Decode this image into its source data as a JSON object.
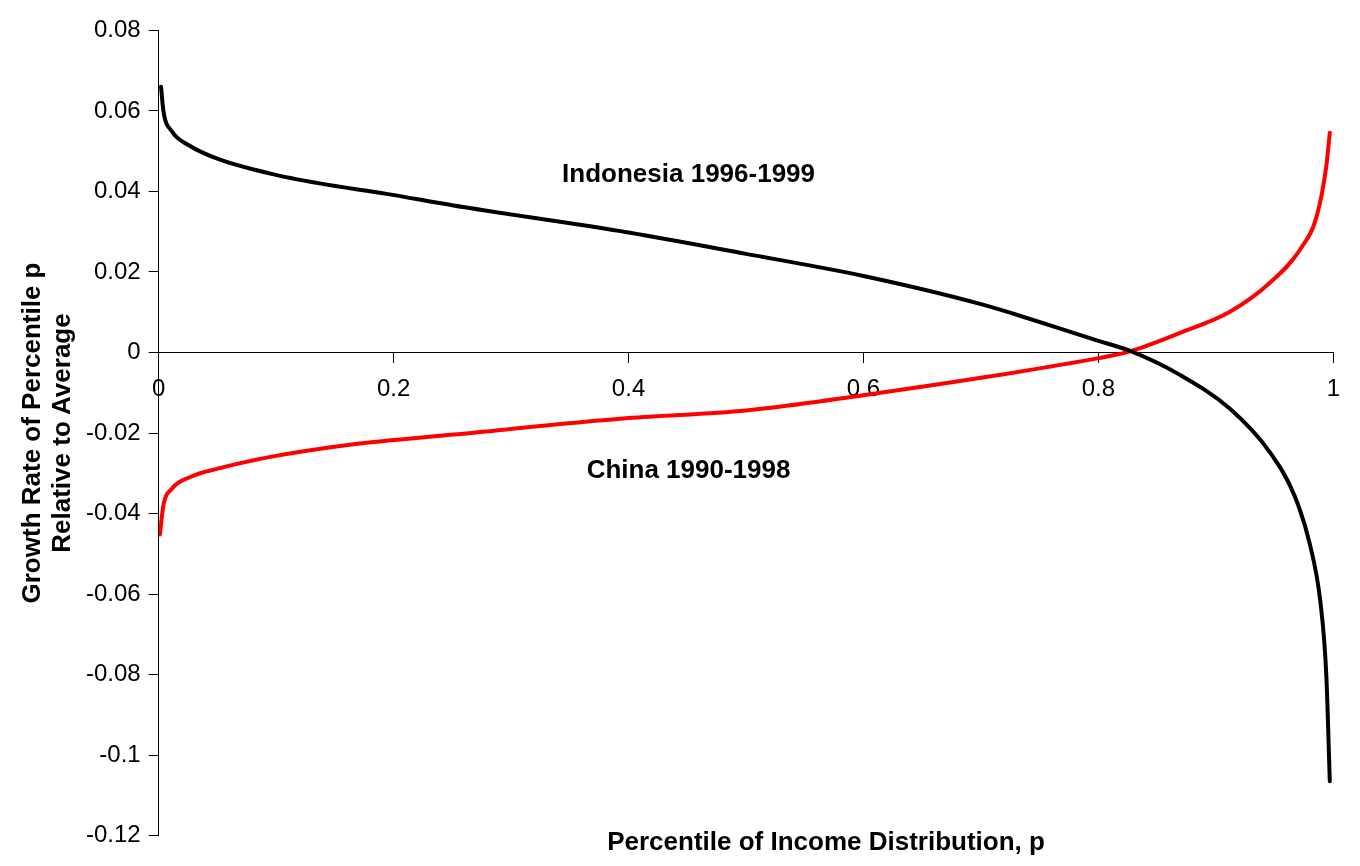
{
  "chart_data": {
    "type": "line",
    "xlabel": "Percentile of Income Distribution, p",
    "ylabel": "Growth Rate of Percentile p\nRelative to Average",
    "xlim": [
      0,
      1
    ],
    "xticks": [
      0,
      0.2,
      0.4,
      0.6,
      0.8,
      1
    ],
    "ylim": [
      -0.12,
      0.08
    ],
    "yticks": [
      -0.12,
      -0.1,
      -0.08,
      -0.06,
      -0.04,
      -0.02,
      0,
      0.02,
      0.04,
      0.06,
      0.08
    ],
    "grid": false,
    "legend": false,
    "marker": "none",
    "line_style": "solid",
    "series": [
      {
        "name": "Indonesia 1996-1999",
        "color": "#000000",
        "x": [
          0.002,
          0.004,
          0.011,
          0.026,
          0.051,
          0.094,
          0.137,
          0.194,
          0.251,
          0.4,
          0.5,
          0.6,
          0.7,
          0.8,
          0.826,
          0.869,
          0.912,
          0.946,
          0.967,
          0.98,
          0.989,
          0.994,
          0.997
        ],
        "values": [
          0.066,
          0.06,
          0.055,
          0.0514,
          0.048,
          0.0445,
          0.042,
          0.0394,
          0.0365,
          0.0298,
          0.0245,
          0.019,
          0.012,
          0.0029,
          0.0005,
          -0.0055,
          -0.014,
          -0.0248,
          -0.0356,
          -0.0476,
          -0.062,
          -0.08,
          -0.1065
        ]
      },
      {
        "name": "China 1990-1998",
        "color": "#ff0000",
        "x": [
          0.001,
          0.004,
          0.011,
          0.028,
          0.051,
          0.094,
          0.166,
          0.251,
          0.4,
          0.5,
          0.6,
          0.7,
          0.8,
          0.826,
          0.869,
          0.912,
          0.946,
          0.972,
          0.986,
          0.994,
          0.997
        ],
        "values": [
          -0.0452,
          -0.038,
          -0.0339,
          -0.0308,
          -0.0288,
          -0.026,
          -0.0228,
          -0.0204,
          -0.0163,
          -0.0144,
          -0.0106,
          -0.0063,
          -0.0014,
          0.0002,
          0.0048,
          0.0101,
          0.0173,
          0.0257,
          0.034,
          0.0462,
          0.0546
        ]
      }
    ]
  }
}
